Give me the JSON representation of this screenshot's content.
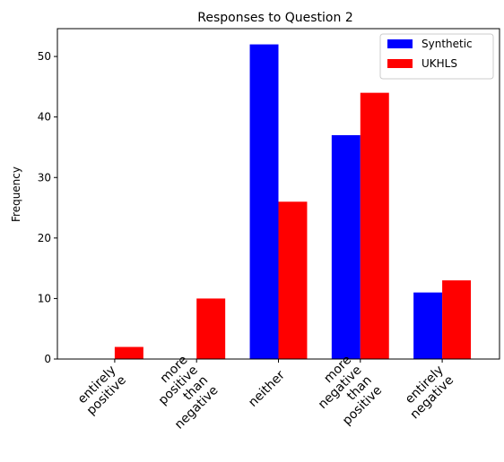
{
  "chart_data": {
    "type": "bar",
    "title": "Responses to Question 2",
    "xlabel": "",
    "ylabel": "Frequency",
    "ylim": [
      0,
      54.6
    ],
    "yticks": [
      0,
      10,
      20,
      30,
      40,
      50
    ],
    "grid": false,
    "legend_position": "top-right",
    "categories": [
      [
        "entirely",
        "positive"
      ],
      [
        "more",
        "positive",
        "than",
        "negative"
      ],
      [
        "neither"
      ],
      [
        "more",
        "negative",
        "than",
        "positive"
      ],
      [
        "entirely",
        "negative"
      ]
    ],
    "series": [
      {
        "name": "Synthetic",
        "color": "#0000ff",
        "values": [
          0,
          0,
          52,
          37,
          11
        ]
      },
      {
        "name": "UKHLS",
        "color": "#ff0000",
        "values": [
          2,
          10,
          26,
          44,
          13
        ]
      }
    ]
  }
}
